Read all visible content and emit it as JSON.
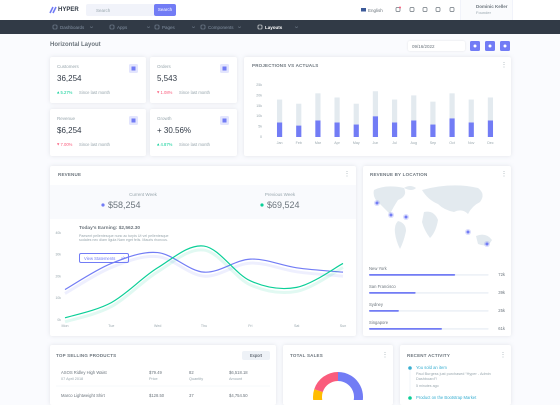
{
  "header": {
    "brand": "HYPER",
    "search_placeholder": "Search",
    "search_button": "Search",
    "language": "English",
    "user_name": "Dominic Keller",
    "user_role": "Founder"
  },
  "nav": [
    "Dashboards",
    "Apps",
    "Pages",
    "Components",
    "Layouts"
  ],
  "page": {
    "title": "Horizontal Layout",
    "date": "09/16/2022"
  },
  "stats": [
    {
      "label": "Customers",
      "value": "36,254",
      "change": "5.27%",
      "trend": "up",
      "note": "Since last month"
    },
    {
      "label": "Orders",
      "value": "5,543",
      "change": "1.08%",
      "trend": "down",
      "note": "Since last month"
    },
    {
      "label": "Revenue",
      "value": "$6,254",
      "change": "7.00%",
      "trend": "down",
      "note": "Since last month"
    },
    {
      "label": "Growth",
      "value": "+ 30.56%",
      "change": "4.87%",
      "trend": "up",
      "note": "Since last month"
    }
  ],
  "projections": {
    "title": "PROJECTIONS VS ACTUALS",
    "chart_data": {
      "type": "bar",
      "stacked": true,
      "categories": [
        "Jan",
        "Feb",
        "Mar",
        "Apr",
        "May",
        "Jun",
        "Jul",
        "Aug",
        "Sep",
        "Oct",
        "Nov",
        "Dec"
      ],
      "series": [
        {
          "color": "#727cf5",
          "values": [
            7,
            5.5,
            8,
            7,
            6,
            10,
            7,
            8,
            6,
            9,
            7,
            8
          ]
        },
        {
          "color": "#e3eaef",
          "values": [
            11,
            10.5,
            13,
            12,
            10,
            12,
            11,
            12,
            11,
            12,
            11,
            11
          ]
        }
      ],
      "ylim": [
        0,
        25
      ],
      "yticks": [
        0,
        {
          "value": 5,
          "label": "5k"
        },
        {
          "value": 10,
          "label": "10k"
        },
        {
          "value": 15,
          "label": "15k"
        },
        {
          "value": 20,
          "label": "20k"
        },
        {
          "value": 25,
          "label": "25k"
        }
      ]
    }
  },
  "revenue": {
    "title": "REVENUE",
    "current_label": "Current Week",
    "current_value": "$58,254",
    "previous_label": "Previous Week",
    "previous_value": "$69,524",
    "earning": "Today's Earning: $2,562.30",
    "description": "Paesent pellentesque nunc ac turpis Ut vel pellentesque sodales nec diam ligula Nam eget felis. Mauris rhoncus.",
    "button": "View Statements",
    "chart_data": {
      "type": "line",
      "categories": [
        "Mon",
        "Tue",
        "Wed",
        "Thu",
        "Fri",
        "Sat",
        "Sun"
      ],
      "series": [
        {
          "color": "#727cf5",
          "values": [
            14,
            26,
            31,
            22,
            28,
            24,
            22
          ]
        },
        {
          "color": "#0acf97",
          "values": [
            1,
            8,
            24,
            34,
            18,
            15,
            26
          ]
        }
      ],
      "ylim": [
        0,
        40
      ],
      "yticks": [
        {
          "value": 0,
          "label": "0k"
        },
        {
          "value": 10,
          "label": "10k"
        },
        {
          "value": 20,
          "label": "20k"
        },
        {
          "value": 30,
          "label": "30k"
        },
        {
          "value": 40,
          "label": "40k"
        }
      ]
    }
  },
  "location": {
    "title": "REVENUE BY LOCATION",
    "xlim": [
      0,
      100
    ],
    "items": [
      {
        "name": "New York",
        "value": 72,
        "value_label": "72k"
      },
      {
        "name": "San Francisco",
        "value": 39,
        "value_label": "39k"
      },
      {
        "name": "Sydney",
        "value": 25,
        "value_label": "25k"
      },
      {
        "name": "Singapore",
        "value": 61,
        "value_label": "61k"
      }
    ]
  },
  "products": {
    "title": "TOP SELLING PRODUCTS",
    "button": "Export",
    "rows": [
      {
        "name": "ASOS Ridley High Waist",
        "date": "07 April 2018",
        "price": "$79.49",
        "price_label": "Price",
        "quantity": "82",
        "quantity_label": "Quantity",
        "amount": "$6,518.18",
        "amount_label": "Amount"
      },
      {
        "name": "Marco Lightweight Shirt",
        "price": "$128.50",
        "quantity": "37",
        "amount": "$4,754.50"
      }
    ]
  },
  "total_sales": {
    "title": "TOTAL SALES",
    "chart_data": {
      "type": "pie",
      "values": [
        35,
        20,
        25,
        20
      ],
      "colors": [
        "#727cf5",
        "#0acf97",
        "#ffbc00",
        "#fa5c7c"
      ]
    }
  },
  "activity": {
    "title": "RECENT ACTIVITY",
    "items": [
      {
        "title": "You sold an item",
        "text": "Paul Burgess just purchased “Hyper - Admin Dashboard”!",
        "time": "5 minutes ago"
      },
      {
        "title": "Product on the Bootstrap Market"
      }
    ]
  }
}
